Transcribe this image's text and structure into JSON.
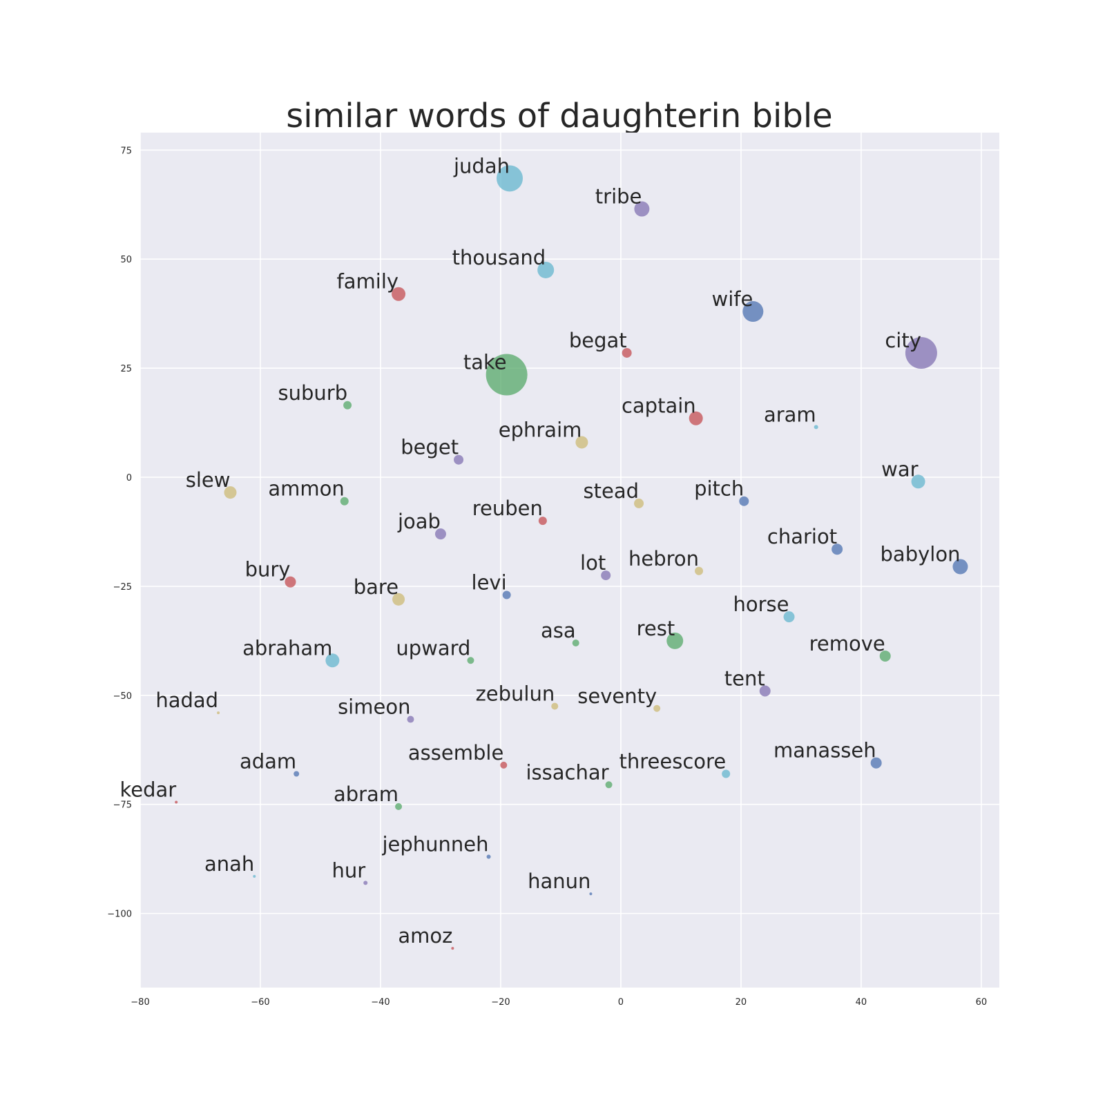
{
  "chart_data": {
    "type": "scatter",
    "title": "similar words of daughterin bible",
    "xlabel": "",
    "ylabel": "",
    "xlim": [
      -80,
      63
    ],
    "ylim": [
      -117,
      79
    ],
    "xticks": [
      -80,
      -60,
      -40,
      -20,
      0,
      20,
      40,
      60
    ],
    "yticks": [
      -100,
      -75,
      -50,
      -25,
      0,
      25,
      50,
      75
    ],
    "grid": true,
    "legend": "none",
    "background_color": "#eaeaf2",
    "grid_color": "#ffffff",
    "palette": {
      "blue": "#4c72b0",
      "green": "#55a868",
      "red": "#c44e52",
      "purple": "#8172b2",
      "yellow": "#ccb974",
      "cyan": "#64b5cd"
    },
    "points": [
      {
        "label": "judah",
        "x": -18.5,
        "y": 68.5,
        "size": 19,
        "color": "cyan"
      },
      {
        "label": "tribe",
        "x": 3.5,
        "y": 61.5,
        "size": 11,
        "color": "purple"
      },
      {
        "label": "thousand",
        "x": -12.5,
        "y": 47.5,
        "size": 12,
        "color": "cyan"
      },
      {
        "label": "family",
        "x": -37,
        "y": 42,
        "size": 10,
        "color": "red"
      },
      {
        "label": "wife",
        "x": 22,
        "y": 38,
        "size": 15,
        "color": "blue"
      },
      {
        "label": "begat",
        "x": 1,
        "y": 28.5,
        "size": 7,
        "color": "red"
      },
      {
        "label": "city",
        "x": 50,
        "y": 28.5,
        "size": 23,
        "color": "purple"
      },
      {
        "label": "take",
        "x": -19,
        "y": 23.5,
        "size": 30,
        "color": "green"
      },
      {
        "label": "suburb",
        "x": -45.5,
        "y": 16.5,
        "size": 6,
        "color": "green"
      },
      {
        "label": "captain",
        "x": 12.5,
        "y": 13.5,
        "size": 10,
        "color": "red"
      },
      {
        "label": "aram",
        "x": 32.5,
        "y": 11.5,
        "size": 3,
        "color": "cyan"
      },
      {
        "label": "ephraim",
        "x": -6.5,
        "y": 8,
        "size": 9,
        "color": "yellow"
      },
      {
        "label": "beget",
        "x": -27,
        "y": 4,
        "size": 7,
        "color": "purple"
      },
      {
        "label": "slew",
        "x": -65,
        "y": -3.5,
        "size": 9,
        "color": "yellow"
      },
      {
        "label": "war",
        "x": 49.5,
        "y": -1,
        "size": 10,
        "color": "cyan"
      },
      {
        "label": "ammon",
        "x": -46,
        "y": -5.5,
        "size": 6,
        "color": "green"
      },
      {
        "label": "stead",
        "x": 3,
        "y": -6,
        "size": 7,
        "color": "yellow"
      },
      {
        "label": "pitch",
        "x": 20.5,
        "y": -5.5,
        "size": 7,
        "color": "blue"
      },
      {
        "label": "reuben",
        "x": -13,
        "y": -10,
        "size": 6,
        "color": "red"
      },
      {
        "label": "joab",
        "x": -30,
        "y": -13,
        "size": 8,
        "color": "purple"
      },
      {
        "label": "chariot",
        "x": 36,
        "y": -16.5,
        "size": 8,
        "color": "blue"
      },
      {
        "label": "babylon",
        "x": 56.5,
        "y": -20.5,
        "size": 11,
        "color": "blue"
      },
      {
        "label": "hebron",
        "x": 13,
        "y": -21.5,
        "size": 6,
        "color": "yellow"
      },
      {
        "label": "lot",
        "x": -2.5,
        "y": -22.5,
        "size": 7,
        "color": "purple"
      },
      {
        "label": "bury",
        "x": -55,
        "y": -24,
        "size": 8,
        "color": "red"
      },
      {
        "label": "levi",
        "x": -19,
        "y": -27,
        "size": 6,
        "color": "blue"
      },
      {
        "label": "bare",
        "x": -37,
        "y": -28,
        "size": 9,
        "color": "yellow"
      },
      {
        "label": "horse",
        "x": 28,
        "y": -32,
        "size": 8,
        "color": "cyan"
      },
      {
        "label": "asa",
        "x": -7.5,
        "y": -38,
        "size": 5,
        "color": "green"
      },
      {
        "label": "rest",
        "x": 9,
        "y": -37.5,
        "size": 12,
        "color": "green"
      },
      {
        "label": "remove",
        "x": 44,
        "y": -41,
        "size": 8,
        "color": "green"
      },
      {
        "label": "abraham",
        "x": -48,
        "y": -42,
        "size": 10,
        "color": "cyan"
      },
      {
        "label": "upward",
        "x": -25,
        "y": -42,
        "size": 5,
        "color": "green"
      },
      {
        "label": "tent",
        "x": 24,
        "y": -49,
        "size": 8,
        "color": "purple"
      },
      {
        "label": "hadad",
        "x": -67,
        "y": -54,
        "size": 2,
        "color": "yellow"
      },
      {
        "label": "zebulun",
        "x": -11,
        "y": -52.5,
        "size": 5,
        "color": "yellow"
      },
      {
        "label": "seventy",
        "x": 6,
        "y": -53,
        "size": 5,
        "color": "yellow"
      },
      {
        "label": "simeon",
        "x": -35,
        "y": -55.5,
        "size": 5,
        "color": "purple"
      },
      {
        "label": "assemble",
        "x": -19.5,
        "y": -66,
        "size": 5,
        "color": "red"
      },
      {
        "label": "manasseh",
        "x": 42.5,
        "y": -65.5,
        "size": 8,
        "color": "blue"
      },
      {
        "label": "adam",
        "x": -54,
        "y": -68,
        "size": 4,
        "color": "blue"
      },
      {
        "label": "threescore",
        "x": 17.5,
        "y": -68,
        "size": 6,
        "color": "cyan"
      },
      {
        "label": "issachar",
        "x": -2,
        "y": -70.5,
        "size": 5,
        "color": "green"
      },
      {
        "label": "kedar",
        "x": -74,
        "y": -74.5,
        "size": 2,
        "color": "red"
      },
      {
        "label": "abram",
        "x": -37,
        "y": -75.5,
        "size": 5,
        "color": "green"
      },
      {
        "label": "jephunneh",
        "x": -22,
        "y": -87,
        "size": 3,
        "color": "blue"
      },
      {
        "label": "anah",
        "x": -61,
        "y": -91.5,
        "size": 2,
        "color": "cyan"
      },
      {
        "label": "hur",
        "x": -42.5,
        "y": -93,
        "size": 3,
        "color": "purple"
      },
      {
        "label": "hanun",
        "x": -5,
        "y": -95.5,
        "size": 2,
        "color": "blue"
      },
      {
        "label": "amoz",
        "x": -28,
        "y": -108,
        "size": 2,
        "color": "red"
      }
    ]
  }
}
